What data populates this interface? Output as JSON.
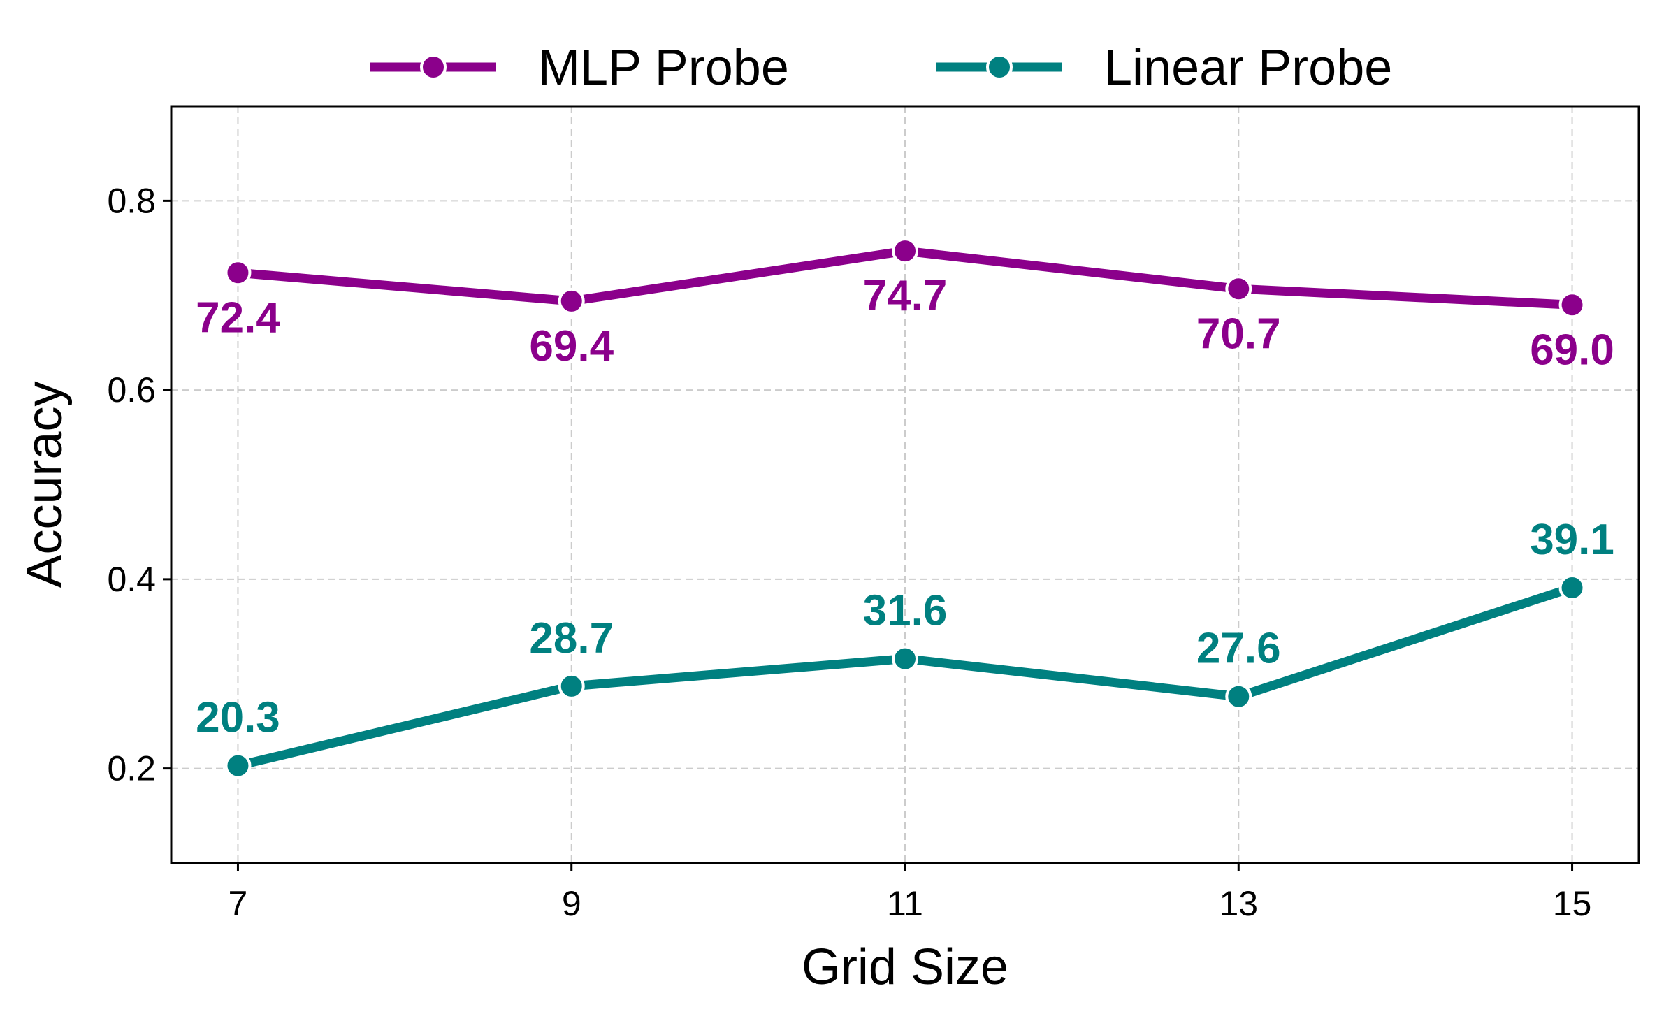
{
  "chart_data": {
    "type": "line",
    "x": [
      7,
      9,
      11,
      13,
      15
    ],
    "x_tick_labels": [
      "7",
      "9",
      "11",
      "13",
      "15"
    ],
    "y_ticks": [
      0.2,
      0.4,
      0.6,
      0.8
    ],
    "y_tick_labels": [
      "0.2",
      "0.4",
      "0.6",
      "0.8"
    ],
    "xlabel": "Grid Size",
    "ylabel": "Accuracy",
    "xlim": [
      6.6,
      15.4
    ],
    "ylim": [
      0.1,
      0.9
    ],
    "grid": true,
    "legend_position": "top-center",
    "series": [
      {
        "name": "MLP Probe",
        "color": "#8B008B",
        "values": [
          0.724,
          0.694,
          0.747,
          0.707,
          0.69
        ],
        "labels": [
          "72.4",
          "69.4",
          "74.7",
          "70.7",
          "69.0"
        ],
        "label_placement": "below"
      },
      {
        "name": "Linear Probe",
        "color": "#008080",
        "values": [
          0.203,
          0.287,
          0.316,
          0.276,
          0.391
        ],
        "labels": [
          "20.3",
          "28.7",
          "31.6",
          "27.6",
          "39.1"
        ],
        "label_placement": "above"
      }
    ]
  }
}
